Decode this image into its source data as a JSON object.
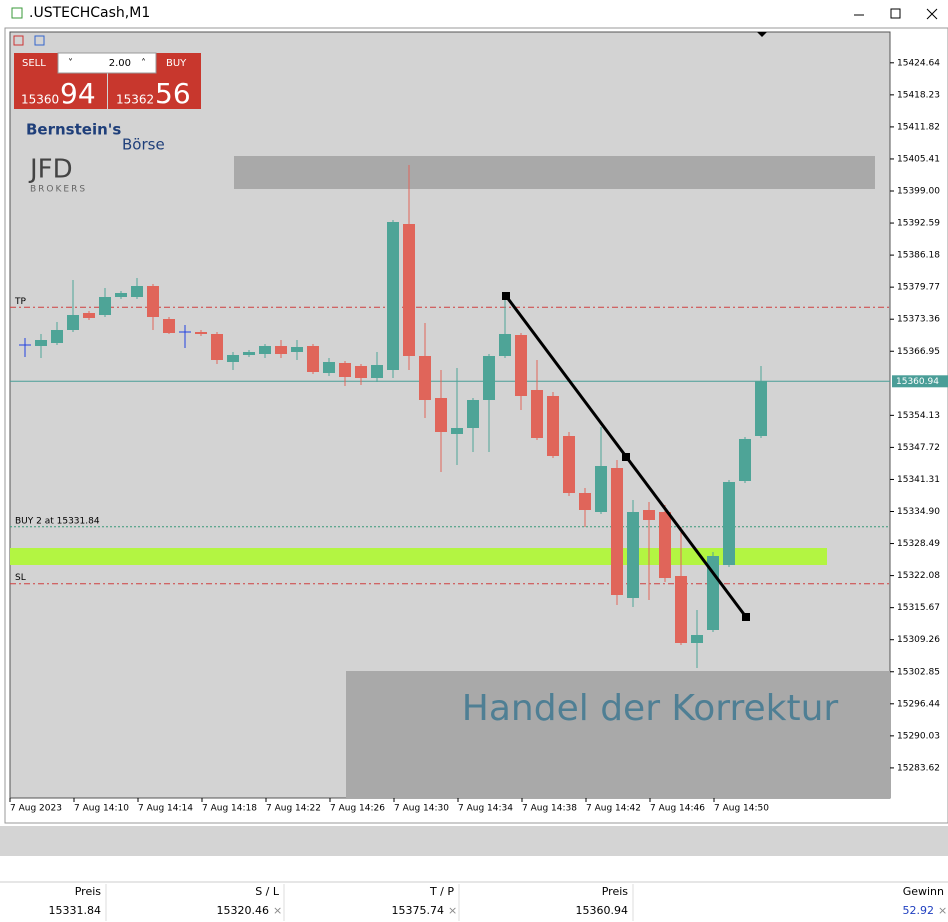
{
  "window": {
    "title": ".USTECHCash,M1"
  },
  "trade_panel": {
    "sell": "SELL",
    "buy": "BUY",
    "volume": "2.00",
    "sell_price_main": "15360",
    "sell_price_big": "94",
    "buy_price_main": "15362",
    "buy_price_big": "56"
  },
  "logos": {
    "bernstein_1": "Bernstein's",
    "bernstein_2": "Börse",
    "jfd": "JFD",
    "jfd_sub": "BROKERS"
  },
  "chart": {
    "type": "candlestick",
    "ylim": [
      15277.6,
      15430.8
    ],
    "yticks": [
      15424.64,
      15418.23,
      15411.82,
      15405.41,
      {
        "value": 15399,
        "label": "15399.00"
      },
      15392.59,
      15386.18,
      15379.77,
      15373.36,
      15366.95,
      15354.13,
      15347.72,
      15341.31,
      {
        "value": 15334.9,
        "label": "15334.90"
      },
      15328.49,
      15322.08,
      15315.67,
      15309.26,
      15302.85,
      15296.44,
      15290.03,
      15283.62
    ],
    "time_labels": [
      "7 Aug 2023",
      "7 Aug 14:10",
      "7 Aug 14:14",
      "7 Aug 14:18",
      "7 Aug 14:22",
      "7 Aug 14:26",
      "7 Aug 14:30",
      "7 Aug 14:34",
      "7 Aug 14:38",
      "7 Aug 14:42",
      "7 Aug 14:46",
      "7 Aug 14:50"
    ],
    "up_color": "#4ea497",
    "down_color": "#e0655a",
    "candles": [
      {
        "o": 15368.2,
        "h": 15369.6,
        "l": 15365.8,
        "c": 15368.2
      },
      {
        "o": 15368.0,
        "h": 15370.4,
        "l": 15365.6,
        "c": 15369.2
      },
      {
        "o": 15368.6,
        "h": 15372.8,
        "l": 15368.2,
        "c": 15371.2
      },
      {
        "o": 15371.2,
        "h": 15381.2,
        "l": 15370.8,
        "c": 15374.2
      },
      {
        "o": 15374.6,
        "h": 15375.0,
        "l": 15373.2,
        "c": 15373.6
      },
      {
        "o": 15374.2,
        "h": 15379.6,
        "l": 15373.8,
        "c": 15377.8
      },
      {
        "o": 15377.8,
        "h": 15379.0,
        "l": 15377.4,
        "c": 15378.6
      },
      {
        "o": 15377.8,
        "h": 15381.6,
        "l": 15377.4,
        "c": 15380.0
      },
      {
        "o": 15380.0,
        "h": 15380.4,
        "l": 15371.2,
        "c": 15373.8
      },
      {
        "o": 15373.4,
        "h": 15373.8,
        "l": 15370.4,
        "c": 15370.6
      },
      {
        "o": 15370.8,
        "h": 15372.2,
        "l": 15367.6,
        "c": 15370.8
      },
      {
        "o": 15370.8,
        "h": 15371.2,
        "l": 15370.0,
        "c": 15370.4
      },
      {
        "o": 15370.4,
        "h": 15370.8,
        "l": 15364.4,
        "c": 15365.2
      },
      {
        "o": 15364.8,
        "h": 15366.8,
        "l": 15363.2,
        "c": 15366.2
      },
      {
        "o": 15366.2,
        "h": 15367.2,
        "l": 15365.8,
        "c": 15366.8
      },
      {
        "o": 15366.4,
        "h": 15368.4,
        "l": 15365.6,
        "c": 15368.0
      },
      {
        "o": 15368.0,
        "h": 15369.2,
        "l": 15365.6,
        "c": 15366.4
      },
      {
        "o": 15366.8,
        "h": 15369.2,
        "l": 15365.2,
        "c": 15367.8
      },
      {
        "o": 15368.0,
        "h": 15368.4,
        "l": 15362.4,
        "c": 15362.8
      },
      {
        "o": 15362.6,
        "h": 15365.6,
        "l": 15362.0,
        "c": 15364.8
      },
      {
        "o": 15364.6,
        "h": 15365.0,
        "l": 15360.0,
        "c": 15361.8
      },
      {
        "o": 15364.0,
        "h": 15364.4,
        "l": 15360.2,
        "c": 15361.6
      },
      {
        "o": 15361.6,
        "h": 15366.8,
        "l": 15360.8,
        "c": 15364.2
      },
      {
        "o": 15363.2,
        "h": 15393.2,
        "l": 15361.6,
        "c": 15392.8
      },
      {
        "o": 15392.4,
        "h": 15404.2,
        "l": 15363.2,
        "c": 15366.0
      },
      {
        "o": 15366.0,
        "h": 15372.6,
        "l": 15353.6,
        "c": 15357.2
      },
      {
        "o": 15357.6,
        "h": 15363.2,
        "l": 15342.8,
        "c": 15350.8
      },
      {
        "o": 15350.4,
        "h": 15363.6,
        "l": 15344.2,
        "c": 15351.6
      },
      {
        "o": 15351.6,
        "h": 15357.6,
        "l": 15346.8,
        "c": 15357.2
      },
      {
        "o": 15357.2,
        "h": 15366.4,
        "l": 15346.8,
        "c": 15366.0
      },
      {
        "o": 15366.0,
        "h": 15378.0,
        "l": 15365.6,
        "c": 15370.4
      },
      {
        "o": 15370.2,
        "h": 15370.6,
        "l": 15355.2,
        "c": 15358.0
      },
      {
        "o": 15359.2,
        "h": 15365.2,
        "l": 15349.2,
        "c": 15349.6
      },
      {
        "o": 15358.0,
        "h": 15358.8,
        "l": 15345.6,
        "c": 15346.0
      },
      {
        "o": 15350.0,
        "h": 15350.8,
        "l": 15338.0,
        "c": 15338.6
      },
      {
        "o": 15338.6,
        "h": 15339.6,
        "l": 15331.8,
        "c": 15335.2
      },
      {
        "o": 15334.8,
        "h": 15351.8,
        "l": 15334.4,
        "c": 15344.0
      },
      {
        "o": 15343.6,
        "h": 15345.2,
        "l": 15316.2,
        "c": 15318.2
      },
      {
        "o": 15317.6,
        "h": 15337.2,
        "l": 15315.8,
        "c": 15334.8
      },
      {
        "o": 15335.2,
        "h": 15336.8,
        "l": 15317.2,
        "c": 15333.2
      },
      {
        "o": 15334.8,
        "h": 15336.2,
        "l": 15320.8,
        "c": 15321.6
      },
      {
        "o": 15322.0,
        "h": 15331.8,
        "l": 15308.2,
        "c": 15308.6
      },
      {
        "o": 15308.6,
        "h": 15315.2,
        "l": 15303.6,
        "c": 15310.2
      },
      {
        "o": 15311.2,
        "h": 15326.8,
        "l": 15310.8,
        "c": 15326.0
      },
      {
        "o": 15324.2,
        "h": 15341.2,
        "l": 15323.8,
        "c": 15340.8
      },
      {
        "o": 15341.0,
        "h": 15349.8,
        "l": 15340.6,
        "c": 15349.4
      },
      {
        "o": 15350.0,
        "h": 15364.0,
        "l": 15349.6,
        "c": 15361.0
      }
    ],
    "tp_label": "TP",
    "sl_label": "SL",
    "buy_label": "BUY 2 at 15331.84",
    "annotation": "Handel der Korrektur"
  },
  "positions": {
    "headers": [
      "Preis",
      "S / L",
      "T / P",
      "Preis",
      "Gewinn"
    ],
    "row": {
      "open_price": 15331.84,
      "sl": 15320.46,
      "tp": 15375.74,
      "current_price": 15360.94,
      "profit": 52.92
    }
  }
}
